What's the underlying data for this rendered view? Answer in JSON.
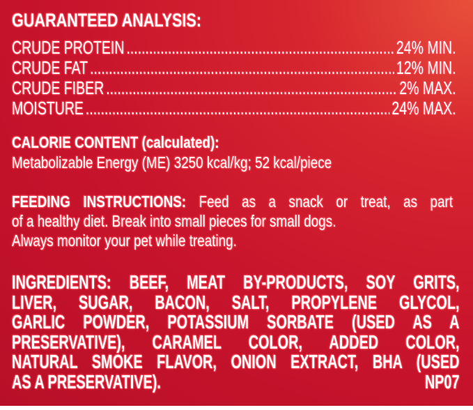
{
  "analysis": {
    "heading": "GUARANTEED ANALYSIS:",
    "rows": [
      {
        "label": "CRUDE PROTEIN",
        "value": "24% MIN."
      },
      {
        "label": "CRUDE FAT",
        "value": "12% MIN."
      },
      {
        "label": "CRUDE FIBER",
        "value": "2% MAX."
      },
      {
        "label": "MOISTURE",
        "value": "24% MAX."
      }
    ]
  },
  "calorie": {
    "heading": "CALORIE CONTENT (calculated):",
    "text": "Metabolizable Energy (ME) 3250 kcal/kg; 52 kcal/piece"
  },
  "feeding": {
    "heading": "FEEDING INSTRUCTIONS:",
    "line1": "Feed as a snack or treat, as part",
    "line2": "of a healthy diet. Break into small pieces for small dogs.",
    "line3": "Always monitor your pet while treating."
  },
  "ingredients": {
    "lines": [
      "INGREDIENTS: BEEF, MEAT BY-PRODUCTS, SOY GRITS,",
      "LIVER, SUGAR, BACON, SALT, PROPYLENE GLYCOL,",
      "GARLIC POWDER, POTASSIUM SORBATE (USED AS A",
      "PRESERVATIVE), CARAMEL COLOR, ADDED COLOR,",
      "NATURAL SMOKE FLAVOR, ONION EXTRACT, BHA (USED"
    ],
    "last_line": "AS A PRESERVATIVE).",
    "code": "NP07"
  },
  "colors": {
    "background": "#c8142c",
    "text": "#ffffff"
  }
}
